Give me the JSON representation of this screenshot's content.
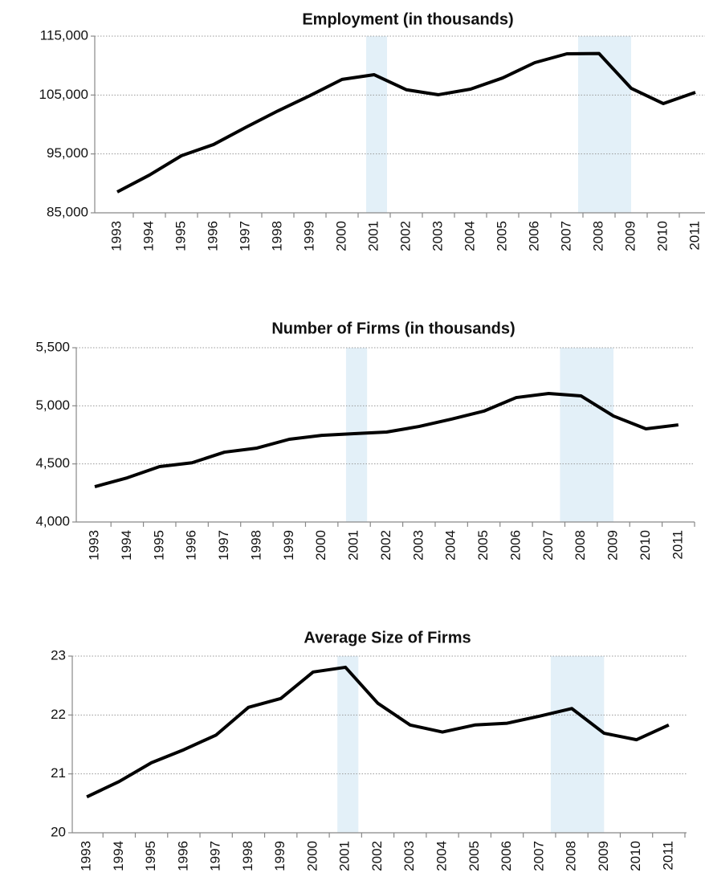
{
  "chart_data": [
    {
      "type": "line",
      "title": "Employment (in thousands)",
      "x": [
        1993,
        1994,
        1995,
        1996,
        1997,
        1998,
        1999,
        2000,
        2001,
        2002,
        2003,
        2004,
        2005,
        2006,
        2007,
        2008,
        2009,
        2010,
        2011
      ],
      "values": [
        88550,
        91400,
        94700,
        96600,
        99500,
        102300,
        104900,
        107650,
        108450,
        105900,
        105050,
        106000,
        107900,
        110500,
        112000,
        112050,
        106150,
        103550,
        105450
      ],
      "color": "#000000",
      "xlim": [
        1992.3,
        2011.3
      ],
      "ylim": [
        85000,
        115000
      ],
      "yticks": [
        {
          "value": 85000,
          "label": "85,000"
        },
        {
          "value": 95000,
          "label": "95,000"
        },
        {
          "value": 105000,
          "label": "105,000"
        },
        {
          "value": 115000,
          "label": "115,000"
        }
      ],
      "grid": true,
      "shaded_periods": [
        [
          2000.75,
          2001.4
        ],
        [
          2007.35,
          2009.0
        ]
      ],
      "shade_color": "#e3f0f8"
    },
    {
      "type": "line",
      "title": "Number of Firms (in thousands)",
      "x": [
        1993,
        1994,
        1995,
        1996,
        1997,
        1998,
        1999,
        2000,
        2001,
        2002,
        2003,
        2004,
        2005,
        2006,
        2007,
        2008,
        2009,
        2010,
        2011
      ],
      "values": [
        4304,
        4380,
        4477,
        4510,
        4601,
        4636,
        4712,
        4746,
        4760,
        4774,
        4822,
        4885,
        4954,
        5071,
        5106,
        5085,
        4912,
        4802,
        4836
      ],
      "color": "#000000",
      "xlim": [
        1992.43,
        2011.5
      ],
      "ylim": [
        4000,
        5500
      ],
      "yticks": [
        {
          "value": 4000,
          "label": "4,000"
        },
        {
          "value": 4500,
          "label": "4,500"
        },
        {
          "value": 5000,
          "label": "5,000"
        },
        {
          "value": 5500,
          "label": "5,500"
        }
      ],
      "grid": true,
      "shaded_periods": [
        [
          2000.75,
          2001.4
        ],
        [
          2007.35,
          2009.0
        ]
      ],
      "shade_color": "#e3f0f8"
    },
    {
      "type": "line",
      "title": "Average Size of  Firms",
      "x": [
        1993,
        1994,
        1995,
        1996,
        1997,
        1998,
        1999,
        2000,
        2001,
        2002,
        2003,
        2004,
        2005,
        2006,
        2007,
        2008,
        2009,
        2010,
        2011
      ],
      "values": [
        20.61,
        20.87,
        21.19,
        21.41,
        21.66,
        22.13,
        22.28,
        22.73,
        22.81,
        22.2,
        21.83,
        21.71,
        21.83,
        21.86,
        21.98,
        22.11,
        21.69,
        21.58,
        21.83
      ],
      "color": "#000000",
      "xlim": [
        1992.55,
        2011.55
      ],
      "ylim": [
        20,
        23
      ],
      "yticks": [
        20,
        21,
        22,
        23
      ],
      "grid": true,
      "shaded_periods": [
        [
          2000.75,
          2001.4
        ],
        [
          2007.35,
          2009.0
        ]
      ],
      "shade_color": "#e3f0f8"
    }
  ]
}
